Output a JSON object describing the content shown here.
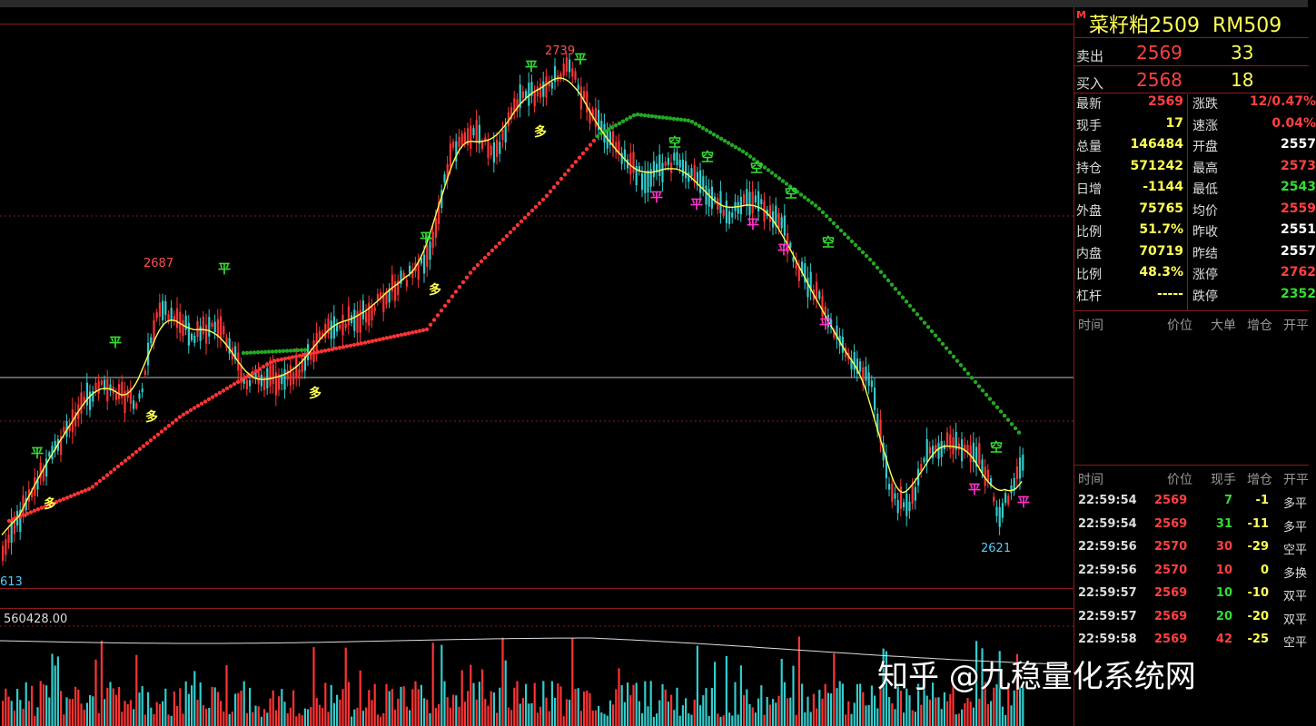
{
  "contract": {
    "name": "菜籽粕2509",
    "code": "RM509",
    "marker": "M"
  },
  "quote": {
    "sell": {
      "label": "卖出",
      "price": "2569",
      "volume": "33"
    },
    "buy": {
      "label": "买入",
      "price": "2568",
      "volume": "18"
    }
  },
  "stats_left": [
    {
      "label": "最新",
      "value": "2569",
      "color": "#ff4040"
    },
    {
      "label": "现手",
      "value": "17",
      "color": "#ffff55"
    },
    {
      "label": "总量",
      "value": "146484",
      "color": "#ffff55"
    },
    {
      "label": "持仓",
      "value": "571242",
      "color": "#ffff55"
    },
    {
      "label": "日增",
      "value": "-1144",
      "color": "#ffff55"
    },
    {
      "label": "外盘",
      "value": "75765",
      "color": "#ffff55"
    },
    {
      "label": "比例",
      "value": "51.7%",
      "color": "#ffff55"
    },
    {
      "label": "内盘",
      "value": "70719",
      "color": "#ffff55"
    },
    {
      "label": "比例",
      "value": "48.3%",
      "color": "#ffff55"
    },
    {
      "label": "杠杆",
      "value": "-----",
      "color": "#ffff55"
    }
  ],
  "stats_right": [
    {
      "label": "涨跌",
      "value": "12/0.47%",
      "color": "#ff4040"
    },
    {
      "label": "速涨",
      "value": "0.04%",
      "color": "#ff4040"
    },
    {
      "label": "开盘",
      "value": "2557",
      "color": "#ffffff"
    },
    {
      "label": "最高",
      "value": "2573",
      "color": "#ff4040"
    },
    {
      "label": "最低",
      "value": "2543",
      "color": "#33dd33"
    },
    {
      "label": "均价",
      "value": "2559",
      "color": "#ff4040"
    },
    {
      "label": "昨收",
      "value": "2551",
      "color": "#ffffff"
    },
    {
      "label": "昨结",
      "value": "2557",
      "color": "#ffffff"
    },
    {
      "label": "涨停",
      "value": "2762",
      "color": "#ff4040"
    },
    {
      "label": "跌停",
      "value": "2352",
      "color": "#33dd33"
    }
  ],
  "big_orders_header": {
    "time": "时间",
    "price": "价位",
    "big": "大单",
    "inc": "增仓",
    "type": "开平"
  },
  "ticks_header": {
    "time": "时间",
    "price": "价位",
    "hand": "现手",
    "inc": "增仓",
    "type": "开平"
  },
  "ticks": [
    {
      "time": "22:59:54",
      "price": "2569",
      "price_color": "#ff4040",
      "hand": "7",
      "hand_color": "#33dd33",
      "inc": "-1",
      "type": "多平"
    },
    {
      "time": "22:59:54",
      "price": "2569",
      "price_color": "#ff4040",
      "hand": "31",
      "hand_color": "#33dd33",
      "inc": "-11",
      "type": "多平"
    },
    {
      "time": "22:59:56",
      "price": "2570",
      "price_color": "#ff4040",
      "hand": "30",
      "hand_color": "#ff4040",
      "inc": "-29",
      "type": "空平"
    },
    {
      "time": "22:59:56",
      "price": "2570",
      "price_color": "#ff4040",
      "hand": "10",
      "hand_color": "#ff4040",
      "inc": "0",
      "type": "多换"
    },
    {
      "time": "22:59:57",
      "price": "2569",
      "price_color": "#ff4040",
      "hand": "10",
      "hand_color": "#33dd33",
      "inc": "-10",
      "type": "双平"
    },
    {
      "time": "22:59:57",
      "price": "2569",
      "price_color": "#ff4040",
      "hand": "20",
      "hand_color": "#33dd33",
      "inc": "-20",
      "type": "双平"
    },
    {
      "time": "22:59:58",
      "price": "2569",
      "price_color": "#ff4040",
      "hand": "42",
      "hand_color": "#ff4040",
      "inc": "-25",
      "type": "空平"
    }
  ],
  "chart": {
    "price_labels": {
      "high1": "2687",
      "high2": "2739",
      "low1": "2621",
      "low_left": "613"
    },
    "volume_label": "560428.00",
    "signals": [
      {
        "t": "平",
        "color": "#33dd33"
      },
      {
        "t": "多",
        "color": "#ffff55"
      },
      {
        "t": "空",
        "color": "#33dd33"
      },
      {
        "t": "平",
        "color": "#ff33cc"
      }
    ]
  },
  "watermark": "知乎 @九稳量化系统网",
  "colors": {
    "up": "#ff3333",
    "down": "#33cccc",
    "ma_fast": "#ffff55",
    "ma_up": "#ff3333",
    "ma_down": "#22aa22"
  }
}
